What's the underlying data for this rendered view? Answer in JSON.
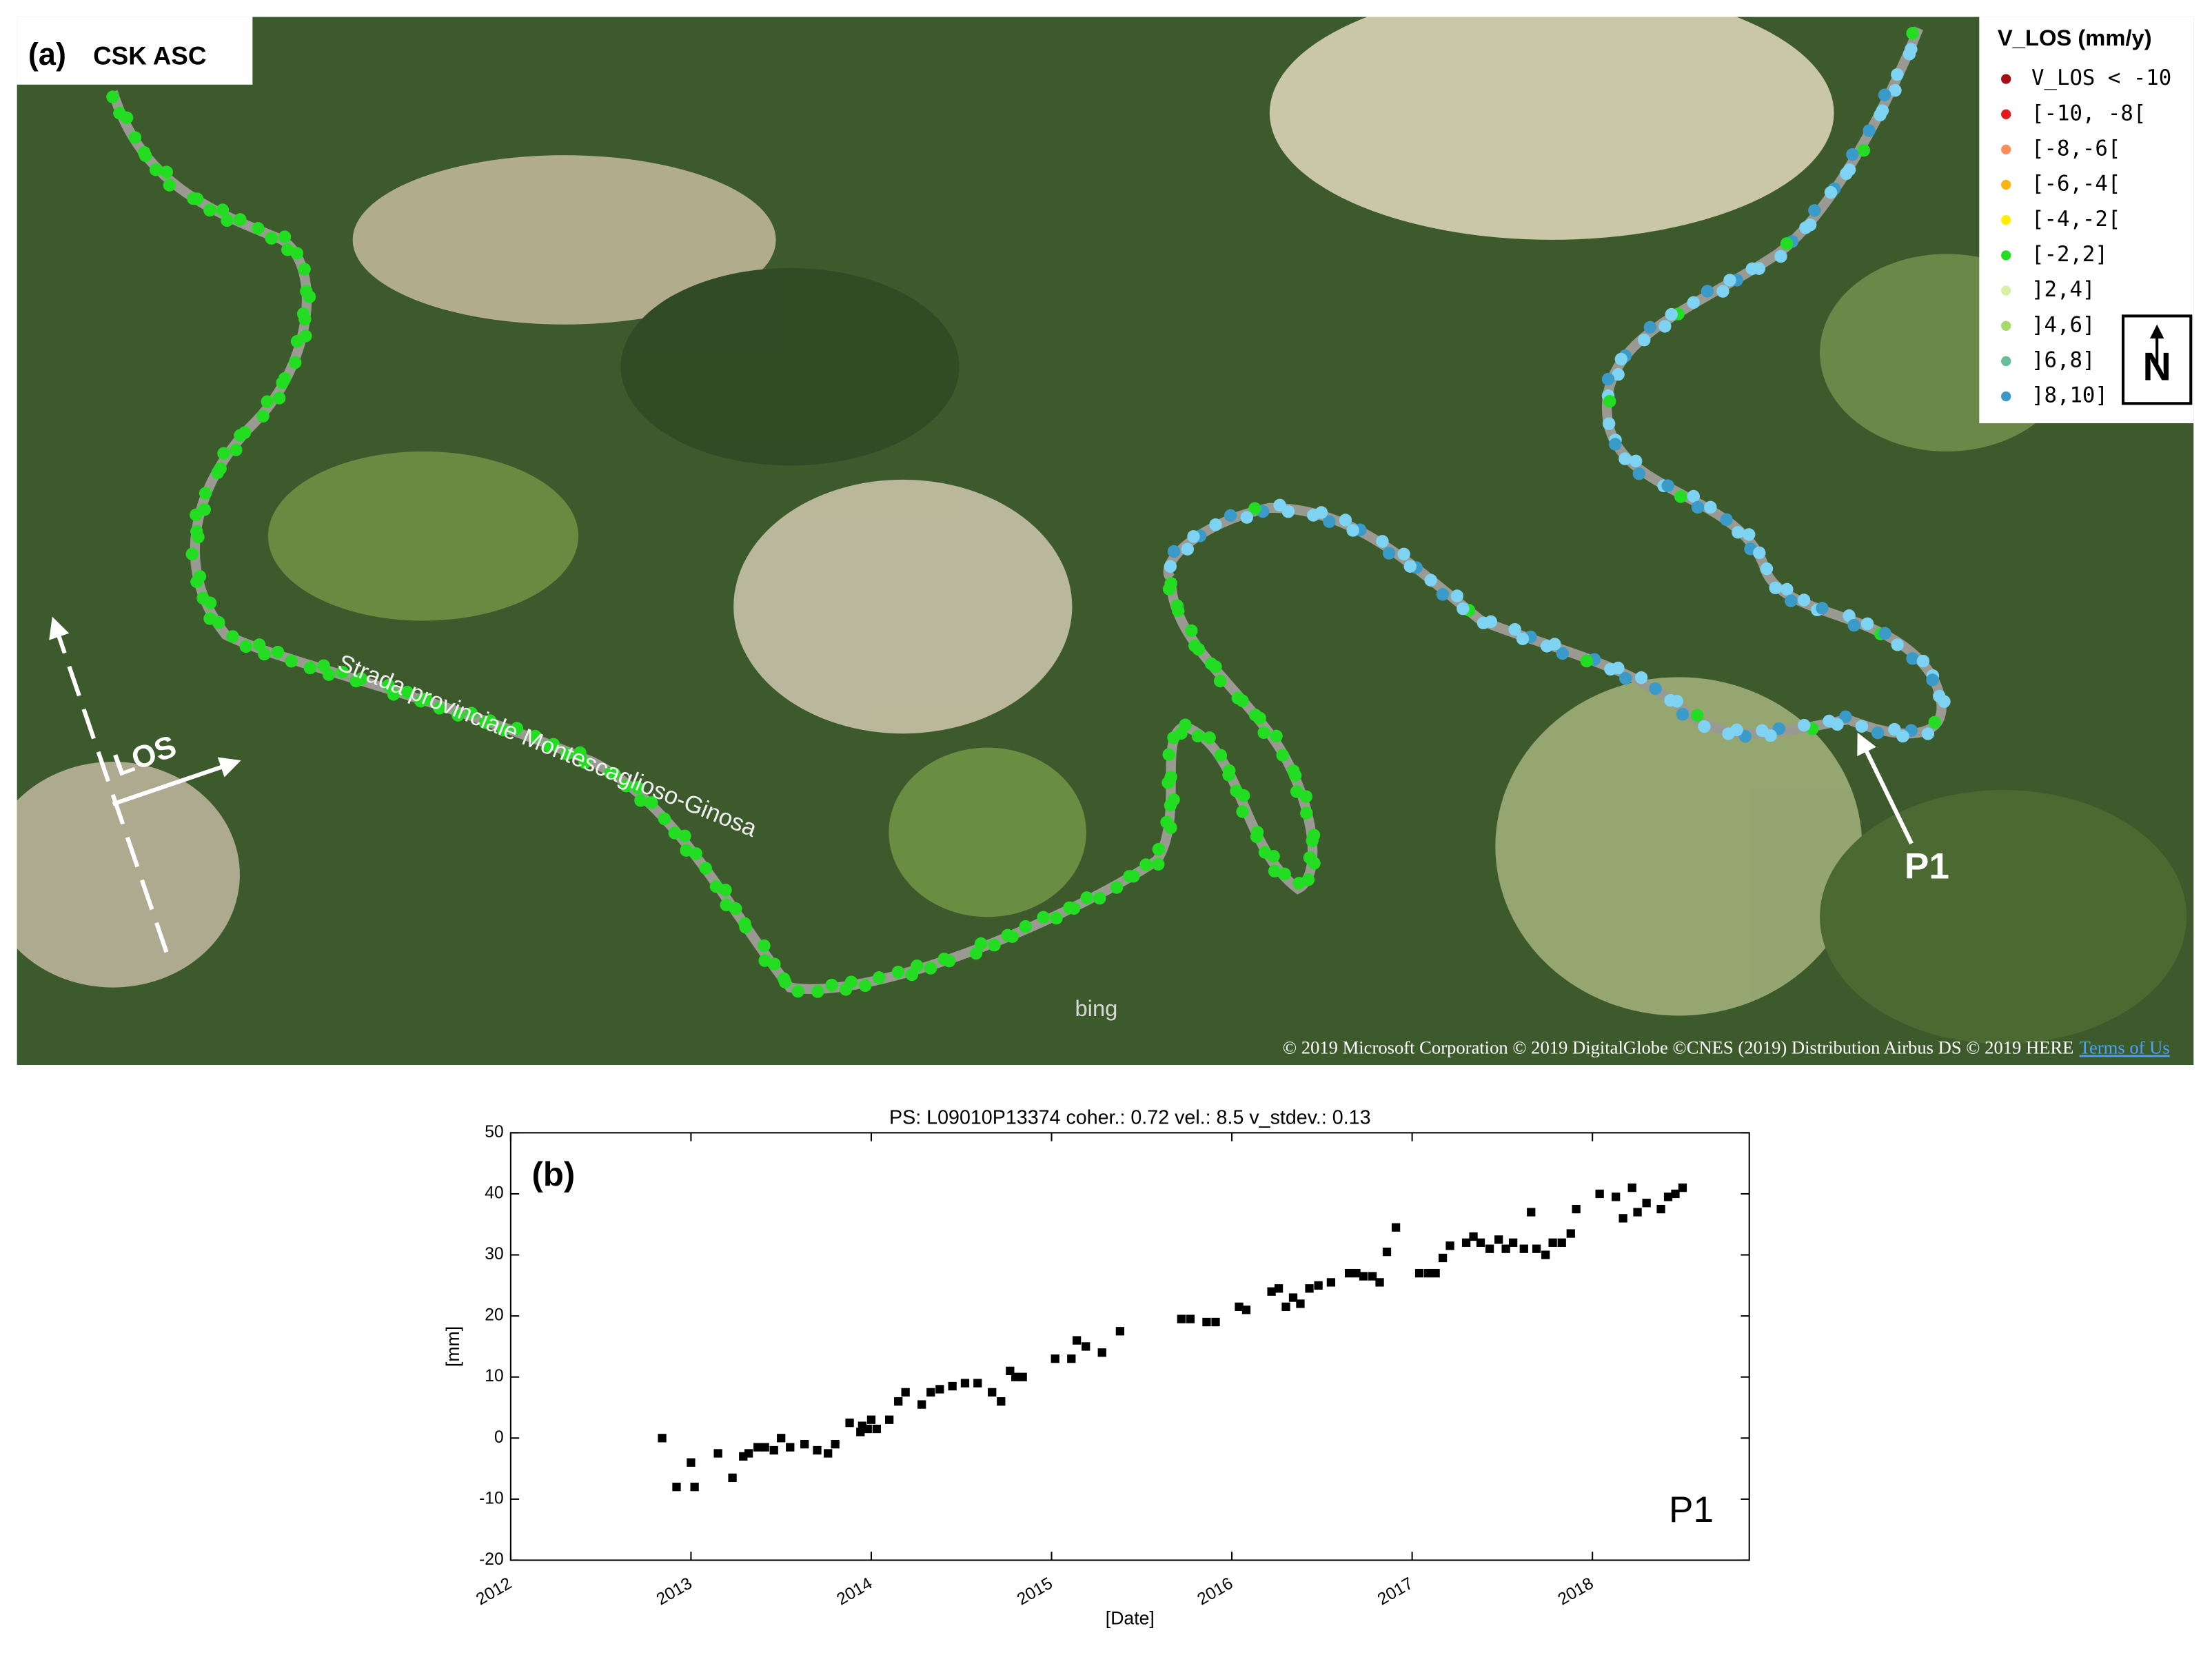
{
  "map": {
    "label": "(a)",
    "title": "CSK ASC",
    "road": "Strada provinciale Montescaglioso-Ginosa",
    "los": "LOS",
    "point": "P1",
    "north": "N",
    "bing": "bing",
    "copyright": "© 2019 Microsoft Corporation © 2019 DigitalGlobe ©CNES (2019) Distribution Airbus DS © 2019 HERE",
    "terms": "Terms of Us",
    "legend": {
      "title": "V_LOS (mm/y)",
      "items": [
        {
          "label": "V_LOS < -10",
          "color": "#a50f15"
        },
        {
          "label": "[-10, -8[",
          "color": "#e31a1c"
        },
        {
          "label": "[-8,-6[",
          "color": "#fc8d59"
        },
        {
          "label": "[-6,-4[",
          "color": "#fdb515"
        },
        {
          "label": "[-4,-2[",
          "color": "#ffee00"
        },
        {
          "label": "[-2,2]",
          "color": "#22dd22"
        },
        {
          "label": "]2,4]",
          "color": "#d9f0a3"
        },
        {
          "label": "]4,6]",
          "color": "#a6d96a"
        },
        {
          "label": "]6,8]",
          "color": "#66bd99"
        },
        {
          "label": "]8,10]",
          "color": "#3a9bc8"
        }
      ]
    }
  },
  "chart_data": {
    "type": "scatter",
    "panel_label": "(b)",
    "annotation": "P1",
    "title": "PS: L09010P13374 coher.: 0.72 vel.: 8.5 v_stdev.: 0.13",
    "x_label": "[Date]",
    "y_label": "[mm]",
    "color": "#000000",
    "xlim": [
      2012,
      2018.87
    ],
    "xticks": [
      2012,
      2013,
      2014,
      2015,
      2016,
      2017,
      2018
    ],
    "ylim": [
      -20,
      50
    ],
    "yticks": [
      -20,
      -10,
      0,
      10,
      20,
      30,
      40,
      50
    ],
    "x": [
      2012.84,
      2012.92,
      2013.0,
      2013.02,
      2013.15,
      2013.23,
      2013.29,
      2013.32,
      2013.37,
      2013.41,
      2013.46,
      2013.5,
      2013.55,
      2013.63,
      2013.7,
      2013.76,
      2013.8,
      2013.88,
      2013.94,
      2013.95,
      2013.98,
      2014.0,
      2014.03,
      2014.1,
      2014.15,
      2014.19,
      2014.28,
      2014.33,
      2014.38,
      2014.45,
      2014.52,
      2014.59,
      2014.67,
      2014.72,
      2014.77,
      2014.8,
      2014.84,
      2015.02,
      2015.11,
      2015.14,
      2015.19,
      2015.28,
      2015.38,
      2015.72,
      2015.77,
      2015.86,
      2015.91,
      2016.04,
      2016.08,
      2016.22,
      2016.26,
      2016.3,
      2016.34,
      2016.38,
      2016.43,
      2016.48,
      2016.55,
      2016.65,
      2016.69,
      2016.73,
      2016.78,
      2016.82,
      2016.86,
      2016.91,
      2017.04,
      2017.09,
      2017.13,
      2017.17,
      2017.21,
      2017.3,
      2017.34,
      2017.38,
      2017.43,
      2017.48,
      2017.52,
      2017.56,
      2017.62,
      2017.66,
      2017.69,
      2017.74,
      2017.78,
      2017.83,
      2017.88,
      2017.91,
      2018.04,
      2018.13,
      2018.17,
      2018.22,
      2018.25,
      2018.3,
      2018.38,
      2018.42,
      2018.46,
      2018.5
    ],
    "values": [
      0,
      -8,
      -4,
      -8,
      -2.5,
      -6.5,
      -3,
      -2.5,
      -1.5,
      -1.5,
      -2,
      0,
      -1.5,
      -1,
      -2,
      -2.5,
      -1,
      2.5,
      1,
      2,
      1.5,
      3,
      1.5,
      3,
      6,
      7.5,
      5.5,
      7.5,
      8,
      8.5,
      9,
      9,
      7.5,
      6,
      11,
      10,
      10,
      13,
      13,
      16,
      15,
      14,
      17.5,
      19.5,
      19.5,
      19,
      19,
      21.5,
      21,
      24,
      24.5,
      21.5,
      23,
      22,
      24.5,
      25,
      25.5,
      27,
      27,
      26.5,
      26.5,
      25.5,
      30.5,
      34.5,
      27,
      27,
      27,
      29.5,
      31.5,
      32,
      33,
      32,
      31,
      32.5,
      31,
      32,
      31,
      37,
      31,
      30,
      32,
      32,
      33.5,
      37.5,
      40,
      39.5,
      36,
      41,
      37,
      38.5,
      37.5,
      39.5,
      40,
      41
    ]
  }
}
